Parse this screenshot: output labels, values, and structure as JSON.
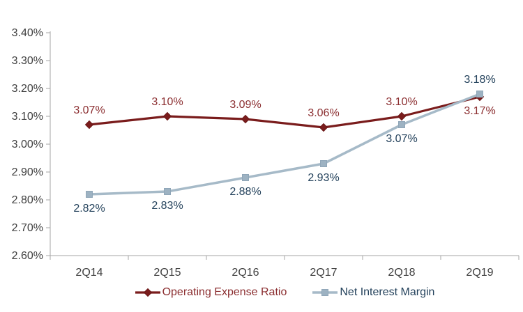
{
  "chart_data": {
    "type": "line",
    "title": "",
    "xlabel": "",
    "ylabel": "",
    "grid": false,
    "legend_position": "bottom",
    "categories": [
      "2Q14",
      "2Q15",
      "2Q16",
      "2Q17",
      "2Q18",
      "2Q19"
    ],
    "series": [
      {
        "name": "Operating Expense Ratio",
        "values": [
          3.07,
          3.1,
          3.09,
          3.06,
          3.1,
          3.17
        ],
        "data_labels": [
          "3.07%",
          "3.10%",
          "3.09%",
          "3.06%",
          "3.10%",
          "3.17%"
        ],
        "label_positions": [
          "above",
          "above",
          "above",
          "above",
          "above",
          "below"
        ],
        "color": "#7A1C1C",
        "marker_fill": "#7A1C1C",
        "marker_stroke": "#6B1717",
        "label_color": "#8B2E30",
        "marker": "diamond",
        "line_width": 3.2
      },
      {
        "name": "Net Interest Margin",
        "values": [
          2.82,
          2.83,
          2.88,
          2.93,
          3.07,
          3.18
        ],
        "data_labels": [
          "2.82%",
          "2.83%",
          "2.88%",
          "2.93%",
          "3.07%",
          "3.18%"
        ],
        "label_positions": [
          "below",
          "below",
          "below",
          "below",
          "below",
          "above"
        ],
        "color": "#A6BAC8",
        "marker_fill": "#9DB2C2",
        "marker_stroke": "#8FA6B8",
        "label_color": "#24425C",
        "marker": "square",
        "line_width": 3.5
      }
    ],
    "ylim": [
      2.6,
      3.4
    ],
    "yticks": [
      {
        "value": 2.6,
        "label": "2.60%"
      },
      {
        "value": 2.7,
        "label": "2.70%"
      },
      {
        "value": 2.8,
        "label": "2.80%"
      },
      {
        "value": 2.9,
        "label": "2.90%"
      },
      {
        "value": 3.0,
        "label": "3.00%"
      },
      {
        "value": 3.1,
        "label": "3.10%"
      },
      {
        "value": 3.2,
        "label": "3.20%"
      },
      {
        "value": 3.3,
        "label": "3.30%"
      },
      {
        "value": 3.4,
        "label": "3.40%"
      }
    ],
    "axis_color": "#A6A6A6",
    "axis_text_color": "#3F3F3F"
  }
}
